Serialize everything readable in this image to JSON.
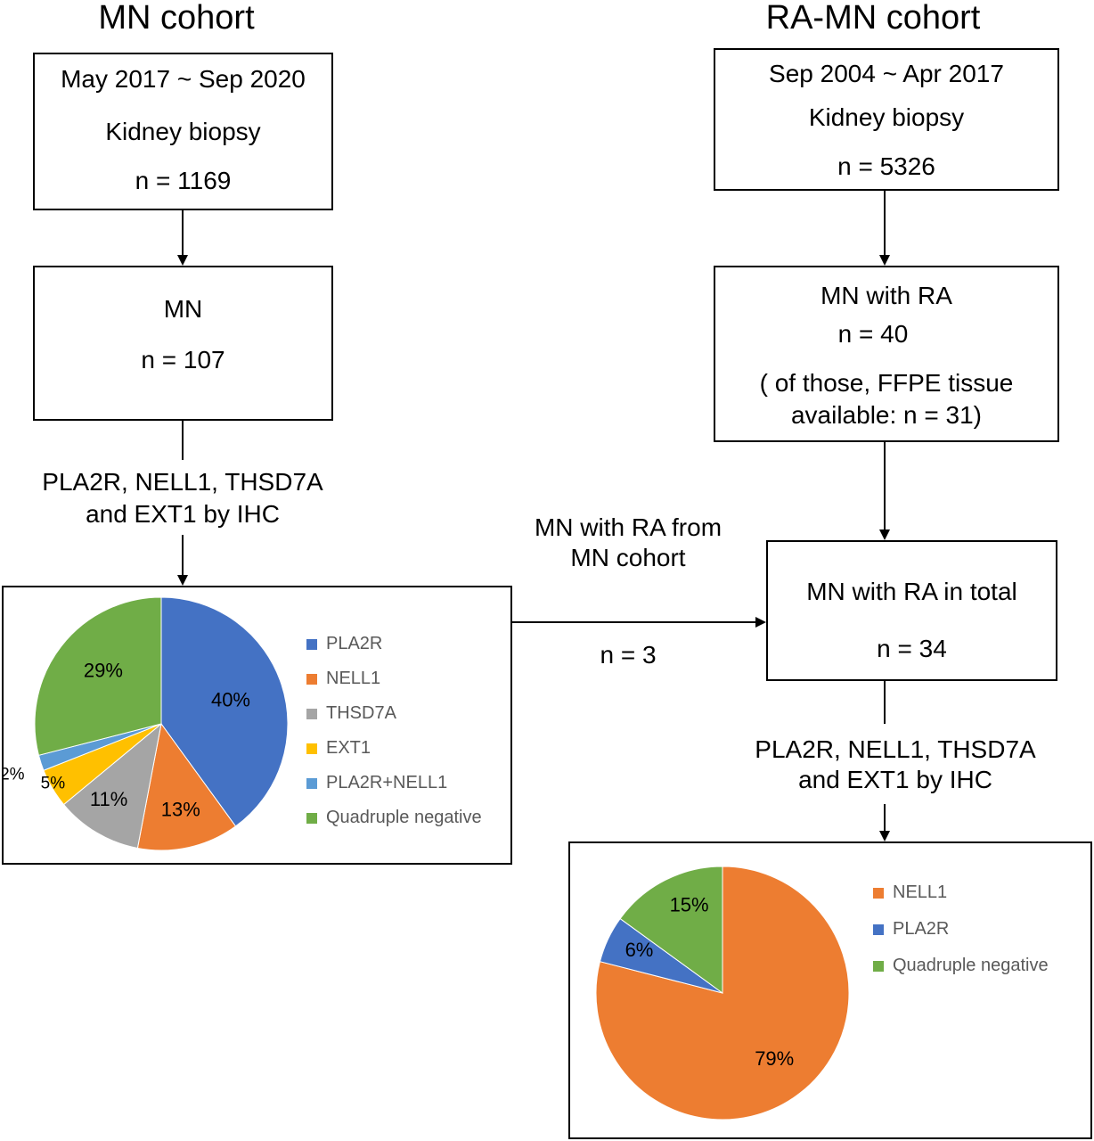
{
  "left_title": "MN cohort",
  "right_title": "RA-MN cohort",
  "left": {
    "box1": {
      "period": "May 2017 ~ Sep 2020",
      "label": "Kidney biopsy",
      "n": "n = 1169"
    },
    "box2": {
      "label": "MN",
      "n": "n = 107"
    },
    "ihc_line1": "PLA2R, NELL1, THSD7A",
    "ihc_line2": "and EXT1 by IHC"
  },
  "right": {
    "box1": {
      "period": "Sep 2004 ~ Apr 2017",
      "label": "Kidney biopsy",
      "n": "n = 5326"
    },
    "box2": {
      "label": "MN with RA",
      "n": "n = 40",
      "note1": "( of those, FFPE tissue",
      "note2": "available: n = 31)"
    },
    "box3": {
      "label": "MN with RA  in total",
      "n": "n = 34"
    },
    "ihc_line1": "PLA2R, NELL1, THSD7A",
    "ihc_line2": "and EXT1 by IHC"
  },
  "transfer": {
    "line1": "MN with RA from",
    "line2": "MN cohort",
    "n": "n = 3"
  },
  "chart_data": [
    {
      "type": "pie",
      "categories": [
        "PLA2R",
        "NELL1",
        "THSD7A",
        "EXT1",
        "PLA2R+NELL1",
        "Quadruple negative"
      ],
      "values": [
        40,
        13,
        11,
        5,
        2,
        29
      ],
      "labels": [
        "40%",
        "13%",
        "11%",
        "5%",
        "2%",
        "29%"
      ],
      "colors": [
        "#4472C4",
        "#ED7D31",
        "#A5A5A5",
        "#FFC000",
        "#5B9BD5",
        "#70AD47"
      ],
      "legend_position": "right"
    },
    {
      "type": "pie",
      "categories": [
        "NELL1",
        "PLA2R",
        "Quadruple negative"
      ],
      "values": [
        79,
        6,
        15
      ],
      "labels": [
        "79%",
        "6%",
        "15%"
      ],
      "colors": [
        "#ED7D31",
        "#4472C4",
        "#70AD47"
      ],
      "legend_position": "right"
    }
  ]
}
